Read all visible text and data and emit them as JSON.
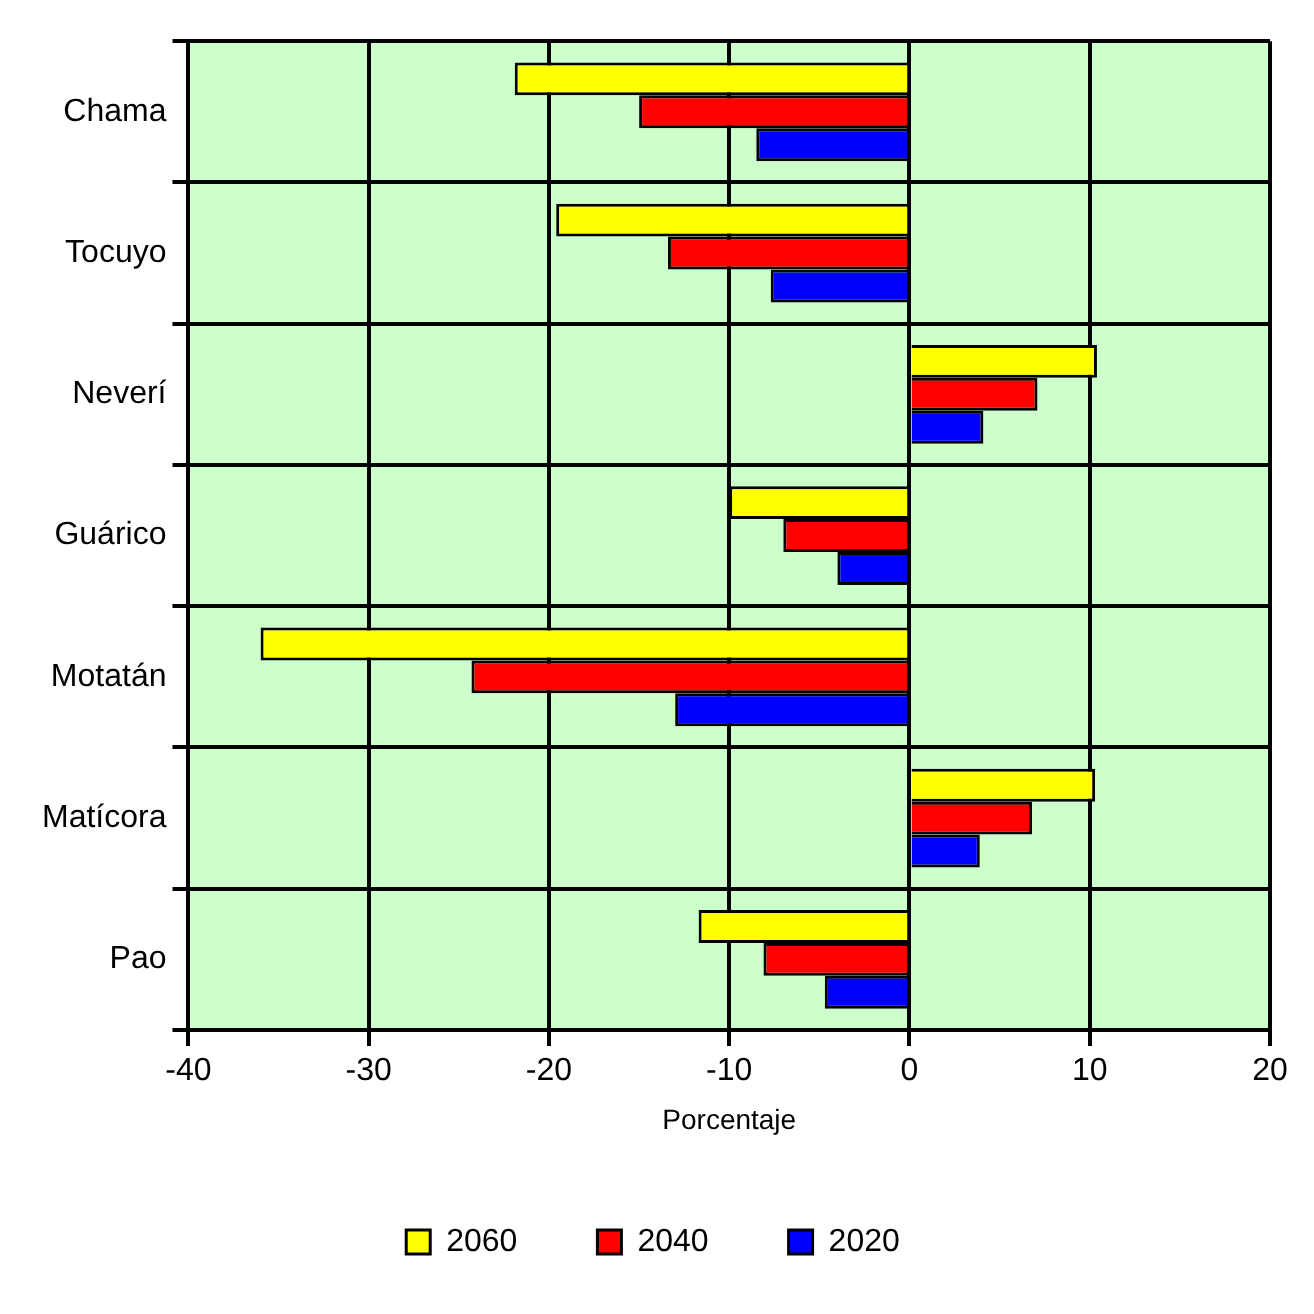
{
  "chart_data": {
    "type": "bar",
    "orientation": "horizontal",
    "xlabel": "Porcentaje",
    "categories": [
      "Chama",
      "Tocuyo",
      "Neverí",
      "Guárico",
      "Motatán",
      "Matícora",
      "Pao"
    ],
    "series": [
      {
        "name": "2060",
        "color": "#ffff00",
        "values": [
          -21.9,
          -19.6,
          10.4,
          -10.0,
          -36.0,
          10.3,
          -11.7
        ]
      },
      {
        "name": "2040",
        "color": "#ff0000",
        "values": [
          -15.0,
          -13.4,
          7.1,
          -7.0,
          -24.3,
          6.8,
          -8.1
        ]
      },
      {
        "name": "2020",
        "color": "#0000ff",
        "values": [
          -8.5,
          -7.7,
          4.1,
          -4.0,
          -13.0,
          3.9,
          -4.7
        ]
      }
    ],
    "xlim": [
      -40,
      20
    ],
    "xticks": [
      -40,
      -30,
      -20,
      -10,
      0,
      10,
      20
    ],
    "grid": true,
    "legend": "bottom"
  }
}
